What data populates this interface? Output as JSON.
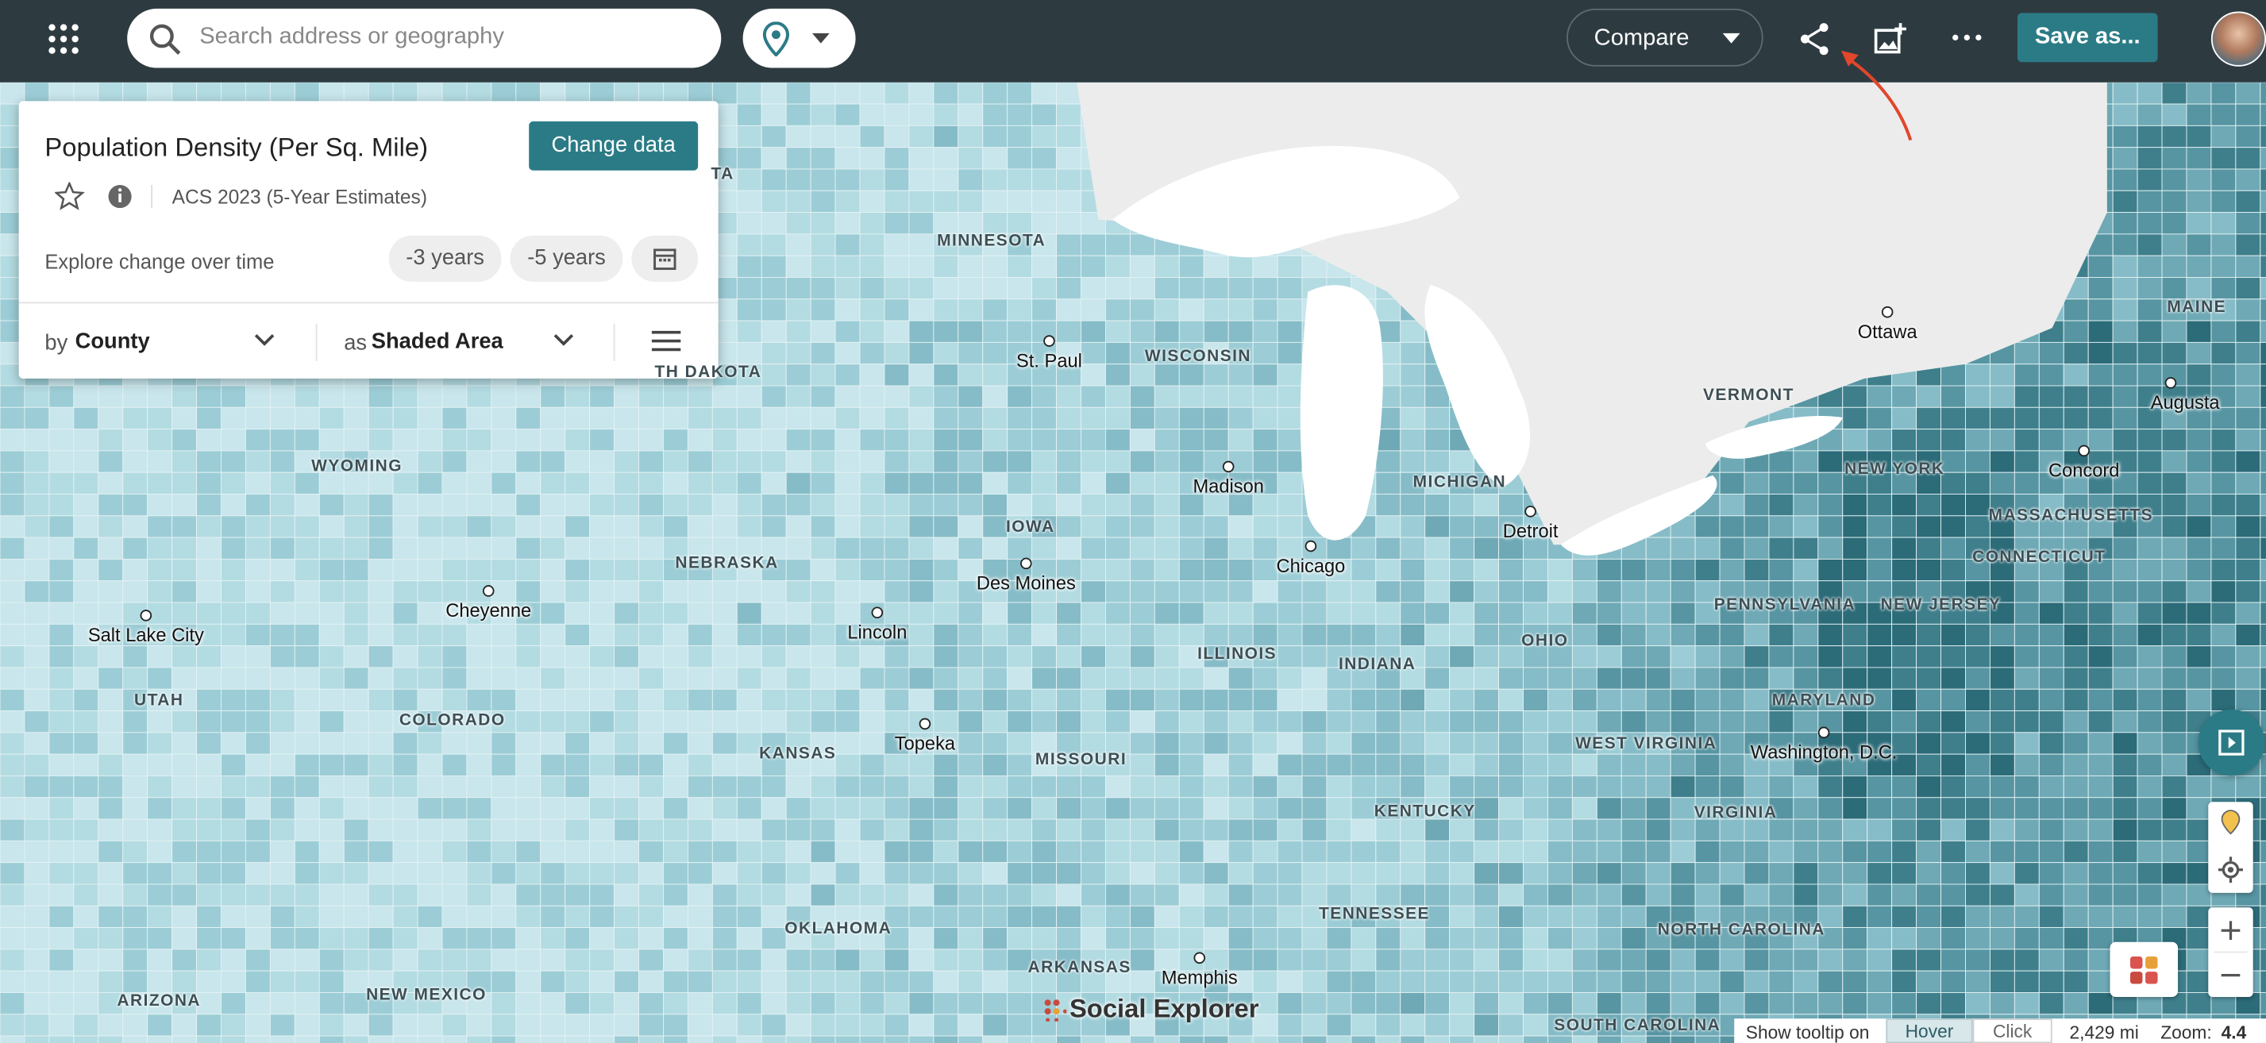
{
  "topbar": {
    "search_placeholder": "Search address or geography",
    "compare": "Compare",
    "save": "Save as..."
  },
  "panel": {
    "title": "Population Density (Per Sq. Mile)",
    "change_data": "Change data",
    "source": "ACS 2023 (5-Year Estimates)",
    "explore": "Explore change over time",
    "minus3": "-3 years",
    "minus5": "-5 years",
    "by": "by",
    "geography": "County",
    "as": "as",
    "visualization": "Shaded Area"
  },
  "map": {
    "labels": [
      "MINNESOTA",
      "WISCONSIN",
      "MICHIGAN",
      "IOWA",
      "NEBRASKA",
      "WYOMING",
      "UTAH",
      "COLORADO",
      "KANSAS",
      "MISSOURI",
      "ILLINOIS",
      "INDIANA",
      "OHIO",
      "PENNSYLVANIA",
      "NEW YORK",
      "VERMONT",
      "MAINE",
      "MASSACHUSETTS",
      "CONNECTICUT",
      "NEW JERSEY",
      "MARYLAND",
      "WEST VIRGINIA",
      "VIRGINIA",
      "KENTUCKY",
      "TENNESSEE",
      "NORTH CAROLINA",
      "SOUTH CAROLINA",
      "OKLAHOMA",
      "ARKANSAS",
      "ARIZONA",
      "NEW MEXICO",
      "TH DAKOTA",
      "TA"
    ],
    "cities": [
      "St. Paul",
      "Madison",
      "Chicago",
      "Detroit",
      "Des Moines",
      "Lincoln",
      "Topeka",
      "Cheyenne",
      "Salt Lake City",
      "Ottawa",
      "Augusta",
      "Concord",
      "Washington, D.C.",
      "Memphis"
    ]
  },
  "footer": {
    "brand": "Social Explorer",
    "tooltip_on": "Show tooltip on",
    "hover": "Hover",
    "click": "Click",
    "scale": "2,429 mi",
    "zoom_label": "Zoom:",
    "zoom": "4.4"
  }
}
